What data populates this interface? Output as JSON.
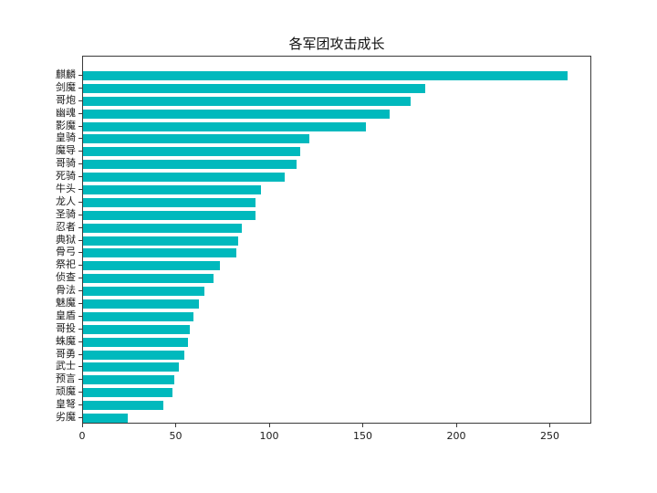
{
  "chart_data": {
    "type": "bar",
    "orientation": "horizontal",
    "title": "各军团攻击成长",
    "xlabel": "",
    "ylabel": "",
    "categories": [
      "麒麟",
      "剑魔",
      "哥炮",
      "幽魂",
      "影魔",
      "皇骑",
      "魔导",
      "哥骑",
      "死骑",
      "牛头",
      "龙人",
      "圣骑",
      "忍者",
      "典狱",
      "骨弓",
      "祭祀",
      "侦查",
      "骨法",
      "魅魔",
      "皇盾",
      "哥投",
      "蛛魔",
      "哥勇",
      "武士",
      "预言",
      "顽魔",
      "皇弩",
      "劣魔"
    ],
    "values": [
      259,
      183,
      175,
      164,
      151,
      121,
      116,
      114,
      108,
      95,
      92,
      92,
      85,
      83,
      82,
      73,
      70,
      65,
      62,
      59,
      57,
      56,
      54,
      51,
      49,
      48,
      43,
      24
    ],
    "x_ticks": [
      0,
      50,
      100,
      150,
      200,
      250
    ],
    "xlim": [
      0,
      272
    ],
    "grid": false,
    "legend": "none",
    "bar_color": "#00b9bd",
    "spine_color": "#3a3a3a",
    "text_color": "#1a1a1a",
    "background_color": "#ffffff"
  }
}
